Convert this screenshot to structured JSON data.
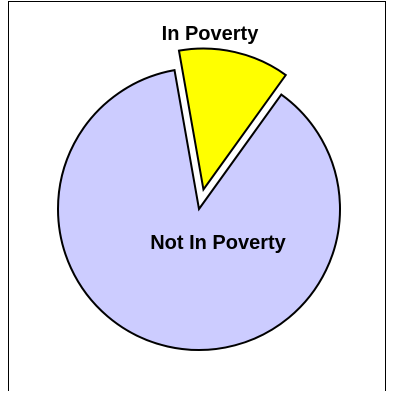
{
  "chart_data": {
    "type": "pie",
    "title": "",
    "slices": [
      {
        "label": "In Poverty",
        "value": 12.7,
        "color": "#ffff00",
        "exploded": true
      },
      {
        "label": "Not In Poverty",
        "value": 87.3,
        "color": "#ccccff",
        "exploded": false
      }
    ],
    "legend": "none",
    "border_color": "#000000"
  }
}
